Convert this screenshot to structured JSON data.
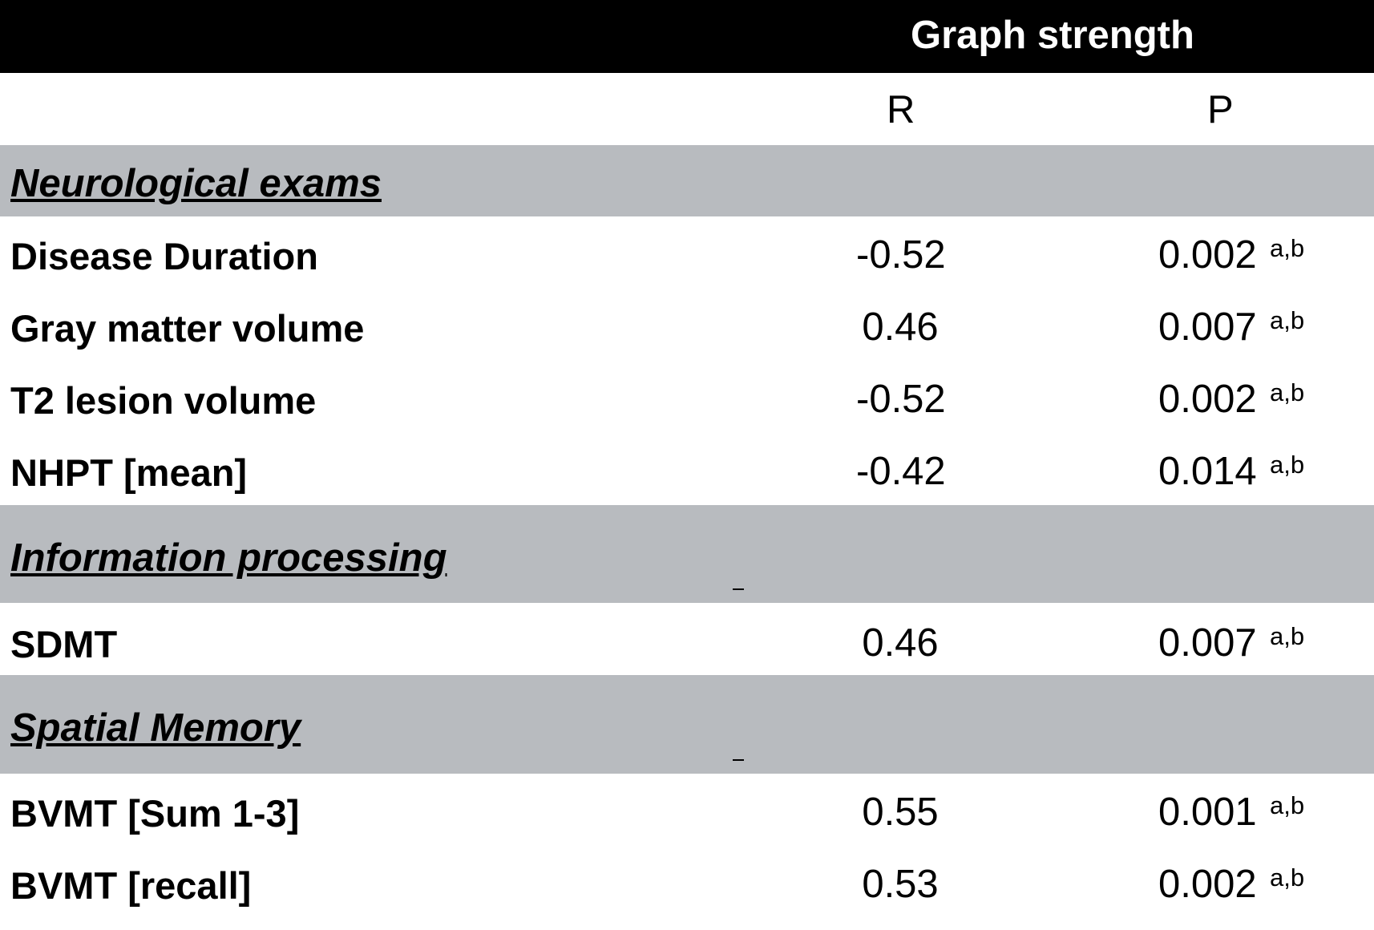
{
  "header": {
    "title": "Graph strength"
  },
  "columns": {
    "r": "R",
    "p": "P"
  },
  "sections": [
    {
      "title": "Neurological exams",
      "rows": [
        {
          "label": "Disease Duration",
          "r": "-0.52",
          "p": "0.002",
          "sup": "a,b"
        },
        {
          "label": "Gray matter volume",
          "r": "0.46",
          "p": "0.007",
          "sup": "a,b"
        },
        {
          "label": "T2 lesion volume",
          "r": "-0.52",
          "p": "0.002",
          "sup": "a,b"
        },
        {
          "label": "NHPT [mean]",
          "r": "-0.42",
          "p": "0.014",
          "sup": "a,b"
        }
      ]
    },
    {
      "title": "Information processing",
      "rows": [
        {
          "label": "SDMT",
          "r": "0.46",
          "p": "0.007",
          "sup": "a,b"
        }
      ]
    },
    {
      "title": "Spatial Memory",
      "rows": [
        {
          "label": "BVMT [Sum 1-3]",
          "r": "0.55",
          "p": "0.001",
          "sup": "a,b"
        },
        {
          "label": "BVMT [recall]",
          "r": "0.53",
          "p": "0.002",
          "sup": "a,b"
        }
      ]
    }
  ]
}
